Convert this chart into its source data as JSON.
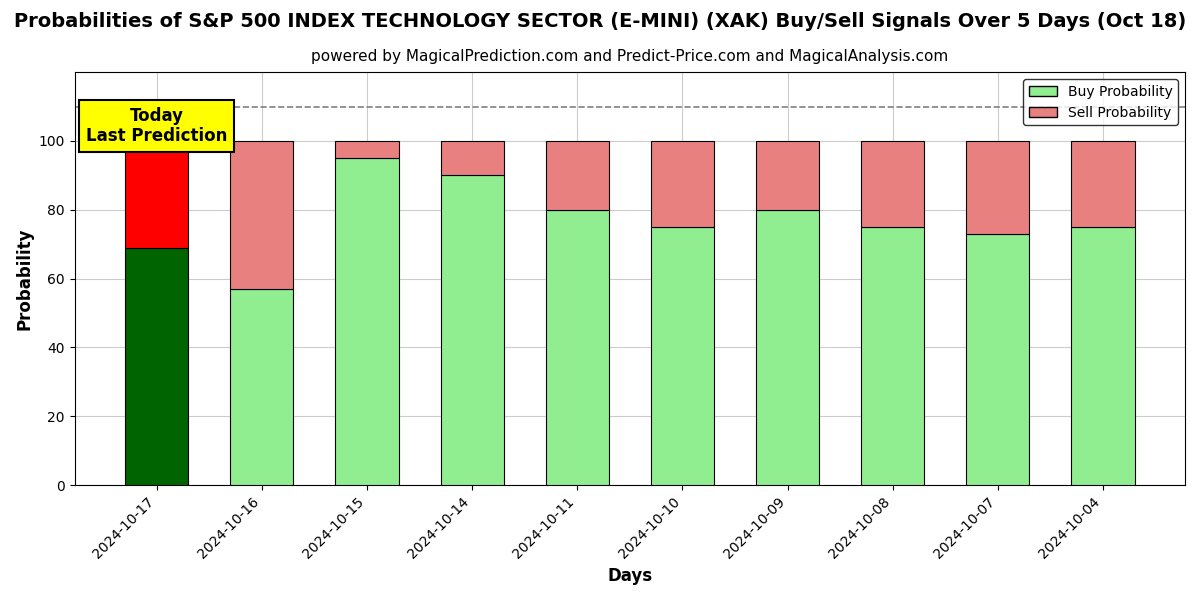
{
  "title": "Probabilities of S&P 500 INDEX TECHNOLOGY SECTOR (E-MINI) (XAK) Buy/Sell Signals Over 5 Days (Oct 18)",
  "subtitle": "powered by MagicalPrediction.com and Predict-Price.com and MagicalAnalysis.com",
  "xlabel": "Days",
  "ylabel": "Probability",
  "categories": [
    "2024-10-17",
    "2024-10-16",
    "2024-10-15",
    "2024-10-14",
    "2024-10-11",
    "2024-10-10",
    "2024-10-09",
    "2024-10-08",
    "2024-10-07",
    "2024-10-04"
  ],
  "buy_values": [
    69,
    57,
    95,
    90,
    80,
    75,
    80,
    75,
    73,
    75
  ],
  "sell_values": [
    31,
    43,
    5,
    10,
    20,
    25,
    20,
    25,
    27,
    25
  ],
  "buy_colors_special": [
    "#006400",
    "#90EE90"
  ],
  "sell_colors_special": [
    "#FF0000",
    "#E88080"
  ],
  "today_box_color": "#FFFF00",
  "today_label": "Today\nLast Prediction",
  "legend_buy_color": "#90EE90",
  "legend_sell_color": "#E88080",
  "ylim": [
    0,
    120
  ],
  "yticks": [
    0,
    20,
    40,
    60,
    80,
    100
  ],
  "dashed_line_y": 110,
  "background_color": "#ffffff",
  "grid_color": "#cccccc",
  "title_fontsize": 14,
  "subtitle_fontsize": 11
}
